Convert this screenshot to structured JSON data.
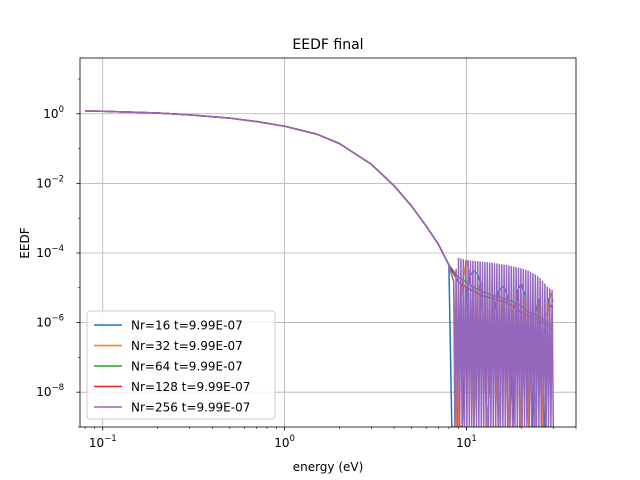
{
  "chart_data": {
    "type": "line",
    "title": "EEDF final",
    "xlabel": "energy (eV)",
    "ylabel": "EEDF",
    "xscale": "log",
    "yscale": "log",
    "xlim": [
      0.075,
      40
    ],
    "ylim": [
      1e-09,
      40
    ],
    "grid": true,
    "legend_position": "lower-left",
    "x_ticks": [
      {
        "value": 0.1,
        "base": "10",
        "exp": "−1"
      },
      {
        "value": 1,
        "base": "10",
        "exp": "0"
      },
      {
        "value": 10,
        "base": "10",
        "exp": "1"
      }
    ],
    "y_ticks": [
      {
        "value": 1e-08,
        "base": "10",
        "exp": "−8"
      },
      {
        "value": 1e-06,
        "base": "10",
        "exp": "−6"
      },
      {
        "value": 0.0001,
        "base": "10",
        "exp": "−4"
      },
      {
        "value": 0.01,
        "base": "10",
        "exp": "−2"
      },
      {
        "value": 1,
        "base": "10",
        "exp": "0"
      }
    ],
    "series": [
      {
        "name": "Nr=16 t=9.99E-07",
        "color": "#1f77b4",
        "x": [
          0.08,
          0.1,
          0.2,
          0.3,
          0.5,
          0.7,
          1.0,
          1.5,
          2.0,
          3.0,
          4.0,
          5.0,
          6.0,
          7.0,
          8.0,
          8.3,
          8.6,
          9.0,
          9.5,
          10.0,
          10.5,
          11.0,
          11.5,
          12.0,
          13.0,
          14.0,
          15.0,
          16.0,
          17.0,
          18.0,
          19.0,
          20.0,
          21.0,
          22.0,
          23.0,
          24.0,
          25.0,
          26.0,
          27.0,
          28.0,
          29.0,
          30.0
        ],
        "y": [
          1.2,
          1.18,
          1.05,
          0.93,
          0.75,
          0.6,
          0.44,
          0.26,
          0.14,
          0.035,
          0.0085,
          0.0022,
          0.0006,
          0.00018,
          4.5e-05,
          1e-09,
          1e-09,
          1e-09,
          1e-09,
          8e-06,
          2.3e-05,
          3e-05,
          2.5e-05,
          1.3e-05,
          1e-09,
          1.2e-06,
          8e-06,
          1.1e-05,
          5e-06,
          1e-09,
          8e-06,
          1.3e-05,
          6e-06,
          1e-09,
          1e-09,
          2e-06,
          4.5e-06,
          1e-09,
          1e-09,
          5e-06,
          3e-06,
          2.8e-06
        ]
      },
      {
        "name": "Nr=32 t=9.99E-07",
        "color": "#ff7f0e",
        "x": [
          0.08,
          0.1,
          0.2,
          0.3,
          0.5,
          0.7,
          1.0,
          1.5,
          2.0,
          3.0,
          4.0,
          5.0,
          6.0,
          7.0,
          8.0,
          8.5,
          8.8,
          9.0,
          9.3,
          9.6,
          10.0,
          10.5,
          11.0,
          11.5,
          12.0,
          13.0,
          14.0,
          15.0,
          16.0,
          17.0,
          18.0,
          19.0,
          20.0,
          21.0,
          22.0,
          23.0,
          24.0,
          25.0,
          26.0,
          27.0,
          28.0,
          29.0,
          30.0
        ],
        "y": [
          1.2,
          1.18,
          1.05,
          0.93,
          0.75,
          0.6,
          0.44,
          0.26,
          0.14,
          0.035,
          0.0085,
          0.0022,
          0.0006,
          0.00018,
          4.5e-05,
          1.5e-05,
          1e-09,
          1e-09,
          5e-06,
          2e-05,
          6e-05,
          2e-05,
          1e-09,
          8e-06,
          1.5e-05,
          1e-09,
          6e-06,
          1e-09,
          5e-06,
          1e-09,
          2.5e-06,
          4e-06,
          1e-09,
          5e-06,
          1e-09,
          2e-06,
          1e-09,
          3e-06,
          1e-09,
          1.5e-06,
          2e-06,
          7e-06,
          4e-06
        ]
      },
      {
        "name": "Nr=64 t=9.99E-07",
        "color": "#2ca02c",
        "x": [
          0.08,
          0.1,
          0.2,
          0.3,
          0.5,
          0.7,
          1.0,
          1.5,
          2.0,
          3.0,
          4.0,
          5.0,
          6.0,
          7.0,
          8.0,
          9.0,
          10.0,
          11.0,
          12.0,
          14.0,
          16.0,
          18.0,
          20.0,
          22.0,
          25.0,
          28.0,
          30.0
        ],
        "y": [
          1.2,
          1.18,
          1.05,
          0.93,
          0.75,
          0.6,
          0.44,
          0.26,
          0.14,
          0.035,
          0.0085,
          0.0022,
          0.0006,
          0.00018,
          4.5e-05,
          2e-05,
          1.5e-05,
          1e-05,
          8e-06,
          6e-06,
          5e-06,
          4e-06,
          3e-06,
          2e-06,
          1.5e-06,
          1e-06,
          8e-07
        ]
      },
      {
        "name": "Nr=128 t=9.99E-07",
        "color": "#d62728",
        "x": [
          0.08,
          0.1,
          0.2,
          0.3,
          0.5,
          0.7,
          1.0,
          1.5,
          2.0,
          3.0,
          4.0,
          5.0,
          6.0,
          7.0,
          8.0,
          9.0,
          10.0,
          11.0,
          12.0,
          14.0,
          16.0,
          18.0,
          20.0,
          22.0,
          25.0,
          28.0,
          30.0
        ],
        "y": [
          1.2,
          1.18,
          1.05,
          0.93,
          0.75,
          0.6,
          0.44,
          0.26,
          0.14,
          0.035,
          0.0085,
          0.0022,
          0.0006,
          0.00018,
          4.5e-05,
          1.5e-05,
          1e-05,
          8e-06,
          6e-06,
          5e-06,
          4e-06,
          3e-06,
          2e-06,
          1.5e-06,
          1.2e-06,
          8e-07,
          6e-07
        ]
      },
      {
        "name": "Nr=256 t=9.99E-07",
        "color": "#9467bd",
        "x": [
          0.08,
          0.1,
          0.2,
          0.3,
          0.5,
          0.7,
          1.0,
          1.5,
          2.0,
          3.0,
          4.0,
          5.0,
          6.0,
          7.0,
          8.0,
          8.5,
          9.0,
          10.0,
          12.0,
          14.0,
          16.0,
          18.0,
          20.0,
          22.0,
          25.0,
          28.0,
          30.0
        ],
        "y": [
          1.2,
          1.18,
          1.05,
          0.93,
          0.75,
          0.6,
          0.44,
          0.26,
          0.14,
          0.035,
          0.0085,
          0.0022,
          0.0006,
          0.00018,
          4.5e-05,
          1.5e-05,
          7e-05,
          6e-05,
          5.5e-05,
          5e-05,
          4.5e-05,
          4e-05,
          3.5e-05,
          3e-05,
          2e-05,
          1e-05,
          8e-06
        ],
        "oscillating": true
      }
    ]
  }
}
